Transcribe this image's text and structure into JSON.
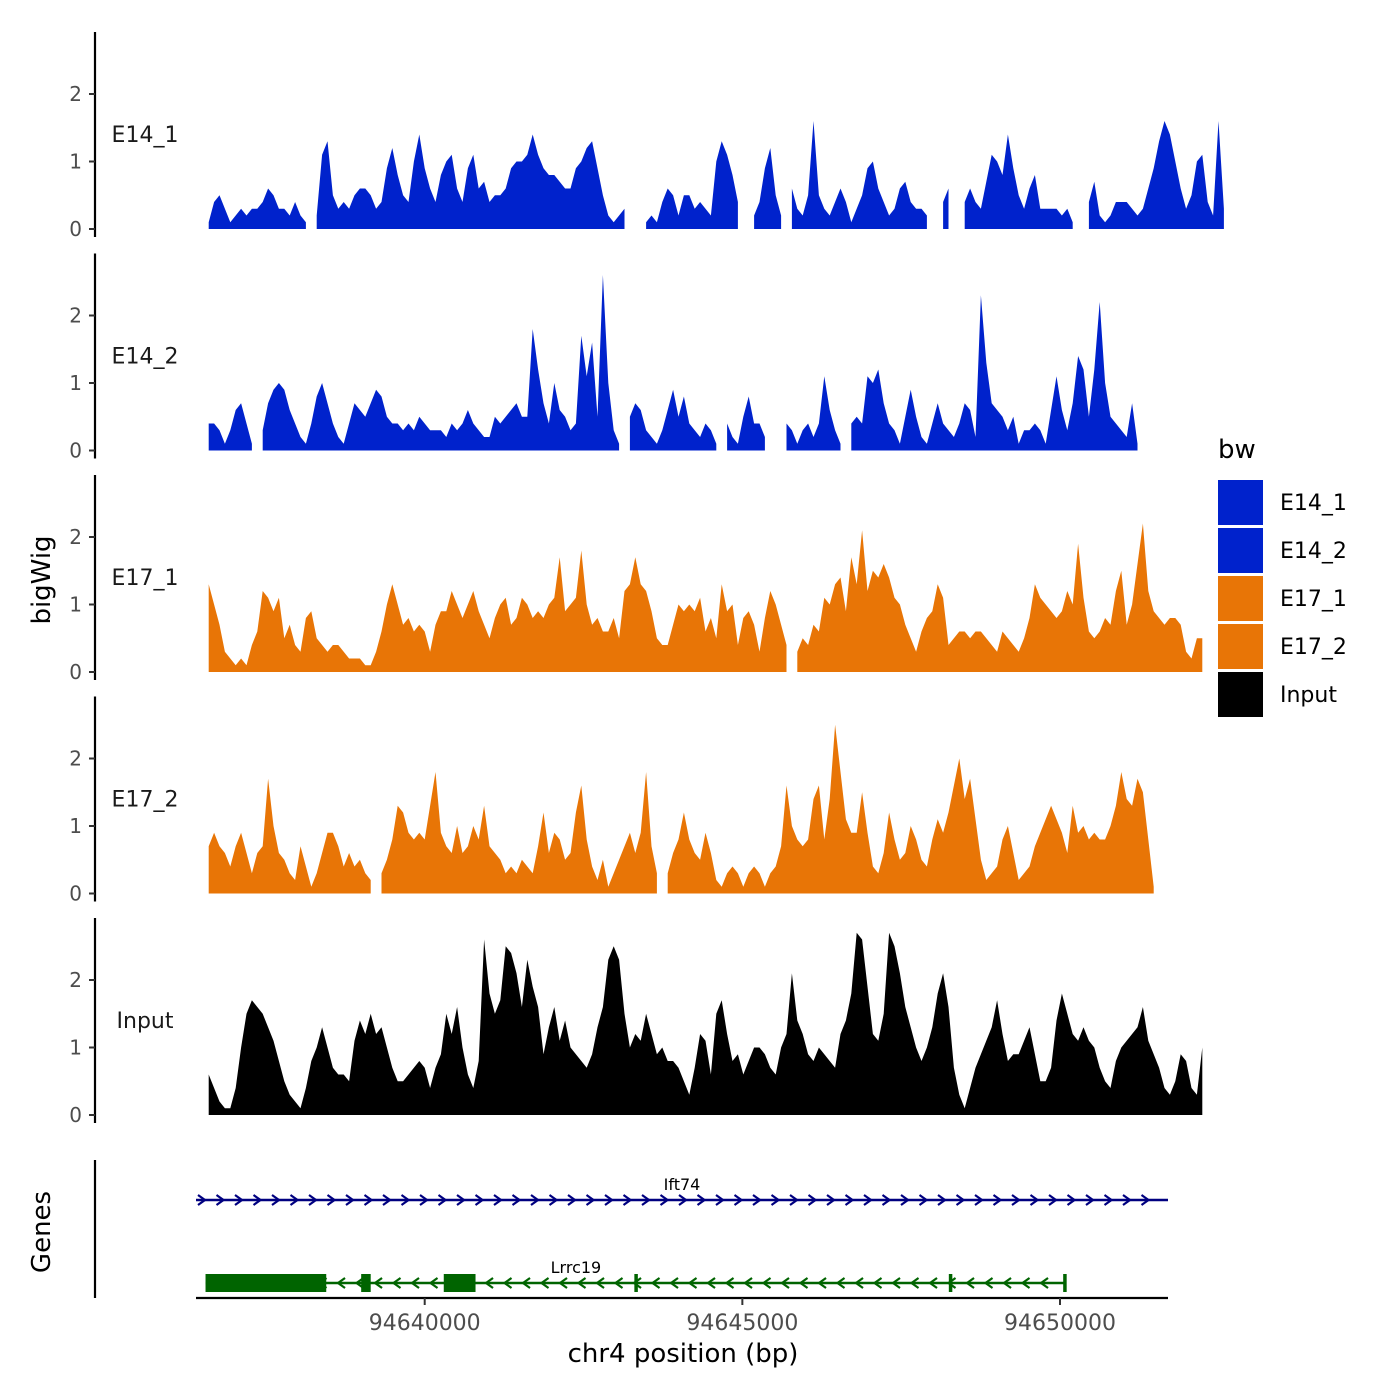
{
  "chart_data": {
    "type": "area",
    "ylabel": "bigWig",
    "xlabel": "chr4 position (bp)",
    "xlim": [
      94636400,
      94651700
    ],
    "x_ticks": [
      94640000,
      94645000,
      94650000
    ],
    "x_tick_labels": [
      "94640000",
      "94645000",
      "94650000"
    ],
    "ylim": [
      0,
      2.8
    ],
    "y_ticks": [
      0,
      1,
      2
    ],
    "y_tick_labels": [
      "0",
      "1",
      "2"
    ],
    "x_start": 94636600,
    "x_step": 85,
    "legend": {
      "title": "bw",
      "position": "right",
      "entries": [
        {
          "label": "E14_1",
          "color": "#0022CC"
        },
        {
          "label": "E14_2",
          "color": "#0022CC"
        },
        {
          "label": "E17_1",
          "color": "#E87506"
        },
        {
          "label": "E17_2",
          "color": "#E87506"
        },
        {
          "label": "Input",
          "color": "#000000"
        }
      ]
    },
    "series": [
      {
        "name": "E14_1",
        "color": "#0022CC",
        "values": [
          0.1,
          0.4,
          0.5,
          0.3,
          0.1,
          0.2,
          0.3,
          0.2,
          0.3,
          0.3,
          0.4,
          0.6,
          0.5,
          0.3,
          0.3,
          0.2,
          0.4,
          0.2,
          0.1,
          null,
          0.2,
          1.1,
          1.3,
          0.5,
          0.3,
          0.4,
          0.3,
          0.5,
          0.6,
          0.6,
          0.5,
          0.3,
          0.4,
          0.9,
          1.2,
          0.8,
          0.5,
          0.4,
          1.0,
          1.4,
          0.9,
          0.6,
          0.4,
          0.8,
          1.0,
          1.1,
          0.6,
          0.4,
          0.9,
          1.1,
          0.6,
          0.7,
          0.4,
          0.5,
          0.5,
          0.6,
          0.9,
          1.0,
          1.0,
          1.1,
          1.4,
          1.1,
          0.9,
          0.8,
          0.8,
          0.7,
          0.6,
          0.6,
          0.9,
          1.0,
          1.2,
          1.3,
          0.9,
          0.5,
          0.2,
          0.1,
          0.2,
          0.3,
          null,
          null,
          null,
          0.1,
          0.2,
          0.1,
          0.4,
          0.6,
          0.5,
          0.2,
          0.5,
          0.5,
          0.3,
          0.4,
          0.3,
          0.2,
          1.0,
          1.3,
          1.1,
          0.8,
          0.4,
          null,
          null,
          0.2,
          0.4,
          0.9,
          1.2,
          0.5,
          0.2,
          null,
          0.6,
          0.3,
          0.2,
          0.5,
          1.6,
          0.5,
          0.3,
          0.2,
          0.4,
          0.6,
          0.4,
          0.1,
          0.3,
          0.5,
          0.9,
          1.0,
          0.6,
          0.4,
          0.2,
          0.3,
          0.6,
          0.7,
          0.4,
          0.3,
          0.3,
          0.2,
          null,
          null,
          0.4,
          0.6,
          null,
          null,
          0.4,
          0.6,
          0.4,
          0.3,
          0.7,
          1.1,
          1.0,
          0.8,
          1.4,
          0.9,
          0.5,
          0.3,
          0.6,
          0.8,
          0.3,
          0.3,
          0.3,
          0.3,
          0.2,
          0.3,
          0.1,
          null,
          null,
          0.4,
          0.7,
          0.2,
          0.1,
          0.2,
          0.4,
          0.4,
          0.4,
          0.3,
          0.2,
          0.3,
          0.6,
          0.9,
          1.3,
          1.6,
          1.4,
          1.0,
          0.6,
          0.3,
          0.5,
          1.0,
          1.1,
          0.4,
          0.2,
          1.6,
          0.3
        ]
      },
      {
        "name": "E14_2",
        "color": "#0022CC",
        "values": [
          0.4,
          0.4,
          0.3,
          0.1,
          0.3,
          0.6,
          0.7,
          0.4,
          0.1,
          null,
          0.3,
          0.7,
          0.9,
          1.0,
          0.9,
          0.6,
          0.4,
          0.2,
          0.1,
          0.4,
          0.8,
          1.0,
          0.7,
          0.4,
          0.2,
          0.1,
          0.4,
          0.7,
          0.6,
          0.5,
          0.7,
          0.9,
          0.8,
          0.5,
          0.4,
          0.4,
          0.3,
          0.4,
          0.3,
          0.5,
          0.4,
          0.3,
          0.3,
          0.3,
          0.2,
          0.4,
          0.3,
          0.4,
          0.6,
          0.4,
          0.3,
          0.2,
          0.2,
          0.5,
          0.4,
          0.5,
          0.6,
          0.7,
          0.5,
          0.5,
          1.8,
          1.2,
          0.7,
          0.4,
          1.0,
          0.6,
          0.5,
          0.3,
          0.4,
          1.7,
          1.1,
          1.6,
          0.5,
          2.6,
          1.0,
          0.3,
          0.1,
          null,
          0.5,
          0.7,
          0.6,
          0.3,
          0.2,
          0.1,
          0.3,
          0.6,
          0.9,
          0.5,
          0.8,
          0.4,
          0.3,
          0.2,
          0.4,
          0.3,
          0.1,
          null,
          0.4,
          0.2,
          0.1,
          0.5,
          0.8,
          0.4,
          0.4,
          0.2,
          null,
          null,
          null,
          0.4,
          0.3,
          0.1,
          0.3,
          0.4,
          0.2,
          0.4,
          1.1,
          0.6,
          0.3,
          0.1,
          null,
          0.4,
          0.5,
          0.4,
          1.1,
          1.0,
          1.2,
          0.7,
          0.4,
          0.3,
          0.1,
          0.5,
          0.9,
          0.5,
          0.2,
          0.1,
          0.4,
          0.7,
          0.4,
          0.3,
          0.2,
          0.4,
          0.7,
          0.6,
          0.2,
          2.3,
          1.3,
          0.7,
          0.6,
          0.5,
          0.3,
          0.5,
          0.1,
          0.3,
          0.3,
          0.4,
          0.3,
          0.1,
          0.6,
          1.1,
          0.6,
          0.3,
          0.7,
          1.4,
          1.2,
          0.5,
          1.2,
          2.2,
          1.0,
          0.5,
          0.4,
          0.3,
          0.2,
          0.7,
          0.1
        ]
      },
      {
        "name": "E17_1",
        "color": "#E87506",
        "values": [
          1.3,
          1.0,
          0.7,
          0.3,
          0.2,
          0.1,
          0.2,
          0.1,
          0.4,
          0.6,
          1.2,
          1.1,
          0.9,
          1.1,
          0.5,
          0.7,
          0.4,
          0.3,
          0.8,
          0.9,
          0.5,
          0.4,
          0.3,
          0.4,
          0.4,
          0.3,
          0.2,
          0.2,
          0.2,
          0.1,
          0.1,
          0.3,
          0.6,
          1.0,
          1.3,
          1.0,
          0.7,
          0.8,
          0.6,
          0.7,
          0.6,
          0.3,
          0.7,
          0.9,
          0.9,
          1.2,
          1.0,
          0.8,
          1.0,
          1.2,
          0.9,
          0.7,
          0.5,
          0.8,
          1.0,
          1.1,
          0.7,
          0.8,
          1.1,
          1.0,
          0.8,
          0.9,
          0.8,
          1.0,
          1.1,
          1.7,
          0.9,
          1.0,
          1.1,
          1.8,
          1.0,
          0.7,
          0.8,
          0.6,
          0.6,
          0.8,
          0.5,
          1.2,
          1.3,
          1.7,
          1.3,
          1.2,
          0.9,
          0.5,
          0.4,
          0.4,
          0.7,
          1.0,
          0.9,
          1.0,
          0.9,
          1.1,
          0.6,
          0.8,
          0.5,
          1.3,
          0.9,
          1.0,
          0.4,
          0.8,
          0.9,
          0.7,
          0.3,
          0.8,
          1.2,
          1.0,
          0.7,
          0.4,
          null,
          0.3,
          0.5,
          0.4,
          0.7,
          0.6,
          1.1,
          1.0,
          1.3,
          1.4,
          0.9,
          1.7,
          1.3,
          2.1,
          1.2,
          1.5,
          1.4,
          1.6,
          1.4,
          1.1,
          1.0,
          0.7,
          0.5,
          0.3,
          0.6,
          0.8,
          0.9,
          1.3,
          1.1,
          0.4,
          0.5,
          0.6,
          0.6,
          0.5,
          0.6,
          0.6,
          0.5,
          0.4,
          0.3,
          0.6,
          0.5,
          0.4,
          0.3,
          0.5,
          0.8,
          1.3,
          1.1,
          1.0,
          0.9,
          0.8,
          0.9,
          1.2,
          1.0,
          1.9,
          1.1,
          0.6,
          0.5,
          0.6,
          0.8,
          0.7,
          1.2,
          1.5,
          0.7,
          1.0,
          1.6,
          2.2,
          1.2,
          0.9,
          0.8,
          0.7,
          0.8,
          0.8,
          0.7,
          0.3,
          0.2,
          0.5,
          0.5
        ]
      },
      {
        "name": "E17_2",
        "color": "#E87506",
        "values": [
          0.7,
          0.9,
          0.7,
          0.6,
          0.4,
          0.7,
          0.9,
          0.6,
          0.3,
          0.6,
          0.7,
          1.7,
          1.0,
          0.6,
          0.5,
          0.3,
          0.2,
          0.7,
          0.4,
          0.1,
          0.3,
          0.6,
          0.9,
          0.9,
          0.7,
          0.4,
          0.6,
          0.4,
          0.5,
          0.3,
          0.2,
          null,
          0.3,
          0.5,
          0.8,
          1.3,
          1.2,
          0.9,
          0.8,
          0.9,
          0.8,
          1.3,
          1.8,
          0.9,
          0.7,
          0.6,
          1.0,
          0.6,
          0.7,
          1.0,
          0.8,
          1.3,
          0.7,
          0.6,
          0.5,
          0.3,
          0.4,
          0.3,
          0.5,
          0.4,
          0.3,
          0.7,
          1.2,
          0.6,
          0.9,
          0.8,
          0.5,
          0.6,
          1.2,
          1.6,
          0.8,
          0.4,
          0.2,
          0.5,
          0.1,
          0.3,
          0.5,
          0.7,
          0.9,
          0.6,
          0.9,
          1.8,
          0.7,
          0.3,
          null,
          0.3,
          0.6,
          0.8,
          1.2,
          0.8,
          0.6,
          0.5,
          0.9,
          0.6,
          0.2,
          0.1,
          0.3,
          0.4,
          0.3,
          0.1,
          0.3,
          0.4,
          0.3,
          0.1,
          0.3,
          0.4,
          0.7,
          1.6,
          1.0,
          0.8,
          0.7,
          0.8,
          1.4,
          1.6,
          0.8,
          1.4,
          2.5,
          1.8,
          1.1,
          0.9,
          0.9,
          1.5,
          0.9,
          0.4,
          0.3,
          0.6,
          1.2,
          0.8,
          0.5,
          0.6,
          1.0,
          0.8,
          0.5,
          0.4,
          0.8,
          1.1,
          0.9,
          1.2,
          1.6,
          2.0,
          1.4,
          1.7,
          1.1,
          0.5,
          0.2,
          0.3,
          0.4,
          0.8,
          1.0,
          0.6,
          0.2,
          0.3,
          0.4,
          0.7,
          0.9,
          1.1,
          1.3,
          1.1,
          0.9,
          0.6,
          1.3,
          0.9,
          1.0,
          0.8,
          0.9,
          0.8,
          0.8,
          1.0,
          1.3,
          1.8,
          1.4,
          1.3,
          1.7,
          1.5,
          0.8,
          0.1
        ]
      },
      {
        "name": "Input",
        "color": "#000000",
        "values": [
          0.6,
          0.4,
          0.2,
          0.1,
          0.1,
          0.4,
          1.0,
          1.5,
          1.7,
          1.6,
          1.5,
          1.3,
          1.1,
          0.8,
          0.5,
          0.3,
          0.2,
          0.1,
          0.4,
          0.8,
          1.0,
          1.3,
          1.0,
          0.7,
          0.6,
          0.6,
          0.5,
          1.1,
          1.4,
          1.2,
          1.5,
          1.2,
          1.3,
          1.0,
          0.7,
          0.5,
          0.5,
          0.6,
          0.7,
          0.8,
          0.7,
          0.4,
          0.7,
          0.9,
          1.5,
          1.2,
          1.6,
          1.0,
          0.6,
          0.4,
          0.8,
          2.6,
          1.8,
          1.5,
          1.7,
          2.5,
          2.4,
          2.1,
          1.6,
          2.3,
          1.9,
          1.6,
          0.9,
          1.3,
          1.6,
          1.1,
          1.4,
          1.0,
          0.9,
          0.8,
          0.7,
          0.9,
          1.3,
          1.6,
          2.3,
          2.5,
          2.3,
          1.5,
          1.0,
          1.2,
          1.1,
          1.5,
          1.2,
          0.9,
          1.0,
          0.8,
          0.8,
          0.7,
          0.5,
          0.3,
          0.7,
          1.2,
          1.1,
          0.6,
          1.5,
          1.7,
          1.2,
          0.8,
          0.9,
          0.6,
          0.8,
          1.0,
          1.0,
          0.9,
          0.7,
          0.6,
          1.0,
          1.2,
          2.1,
          1.4,
          1.2,
          0.9,
          0.8,
          1.0,
          0.9,
          0.8,
          0.7,
          1.2,
          1.4,
          1.8,
          2.7,
          2.6,
          1.9,
          1.2,
          1.1,
          1.5,
          2.7,
          2.5,
          2.1,
          1.6,
          1.3,
          1.0,
          0.8,
          1.0,
          1.3,
          1.8,
          2.1,
          1.6,
          0.7,
          0.3,
          0.1,
          0.4,
          0.7,
          0.9,
          1.1,
          1.3,
          1.7,
          1.2,
          0.8,
          0.9,
          0.9,
          1.1,
          1.3,
          0.9,
          0.5,
          0.5,
          0.7,
          1.4,
          1.8,
          1.5,
          1.2,
          1.1,
          1.3,
          1.1,
          1.0,
          0.7,
          0.5,
          0.4,
          0.8,
          1.0,
          1.1,
          1.2,
          1.3,
          1.6,
          1.1,
          0.9,
          0.7,
          0.4,
          0.3,
          0.5,
          0.9,
          0.8,
          0.4,
          0.3,
          1.0
        ]
      }
    ],
    "genes": [
      {
        "name": "Ift74",
        "strand": "+",
        "color": "#000080",
        "start": 94636400,
        "end": 94651700,
        "exons": []
      },
      {
        "name": "Lrrc19",
        "strand": "-",
        "color": "#006400",
        "start": 94636550,
        "end": 94650100,
        "exons": [
          [
            94636550,
            94638450
          ],
          [
            94639000,
            94639150
          ],
          [
            94640300,
            94640800
          ],
          [
            94643300,
            94643350
          ],
          [
            94648250,
            94648300
          ],
          [
            94650050,
            94650100
          ]
        ]
      }
    ],
    "genes_track_label": "Genes"
  }
}
